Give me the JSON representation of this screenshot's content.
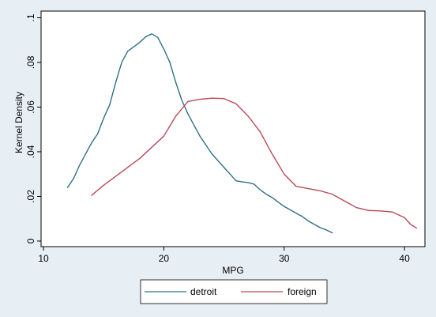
{
  "chart_data": {
    "type": "line",
    "title": "",
    "xlabel": "MPG",
    "ylabel": "Kernel Density",
    "xlim": [
      9.8,
      41.7
    ],
    "ylim": [
      -0.0025,
      0.103
    ],
    "x_ticks": [
      10,
      20,
      30,
      40
    ],
    "x_tick_labels": [
      "10",
      "20",
      "30",
      "40"
    ],
    "y_ticks": [
      0,
      0.02,
      0.04,
      0.06,
      0.08,
      0.1
    ],
    "y_tick_labels": [
      "0",
      ".02",
      ".04",
      ".06",
      ".08",
      ".1"
    ],
    "grid": false,
    "legend_position": "bottom",
    "series": [
      {
        "name": "detroit",
        "color": "#2e6f86",
        "x": [
          12,
          12.5,
          13,
          13.5,
          14,
          14.5,
          15,
          15.5,
          16,
          16.5,
          17,
          17.5,
          18,
          18.5,
          19,
          19.5,
          20,
          20.5,
          21,
          21.5,
          22,
          22.5,
          23,
          23.5,
          24,
          24.5,
          25,
          25.5,
          26,
          26.5,
          27,
          27.5,
          28,
          28.5,
          29,
          29.5,
          30,
          30.5,
          31,
          31.5,
          32,
          32.5,
          33,
          33.5,
          34
        ],
        "y": [
          0.024,
          0.028,
          0.034,
          0.039,
          0.044,
          0.048,
          0.055,
          0.061,
          0.071,
          0.08,
          0.085,
          0.087,
          0.089,
          0.0915,
          0.0928,
          0.0912,
          0.086,
          0.08,
          0.071,
          0.063,
          0.057,
          0.052,
          0.047,
          0.043,
          0.039,
          0.036,
          0.033,
          0.03,
          0.027,
          0.0265,
          0.0262,
          0.0255,
          0.023,
          0.021,
          0.0195,
          0.0175,
          0.0155,
          0.014,
          0.0125,
          0.011,
          0.009,
          0.0075,
          0.006,
          0.005,
          0.0037
        ]
      },
      {
        "name": "foreign",
        "color": "#b84a55",
        "x": [
          14,
          15,
          16,
          17,
          18,
          19,
          20,
          21,
          22,
          23,
          24,
          25,
          26,
          27,
          28,
          29,
          30,
          31,
          32,
          33,
          34,
          35,
          36,
          37,
          38,
          39,
          40,
          40.5,
          41
        ],
        "y": [
          0.0205,
          0.025,
          0.029,
          0.033,
          0.037,
          0.042,
          0.047,
          0.056,
          0.0625,
          0.0635,
          0.064,
          0.0638,
          0.0615,
          0.056,
          0.049,
          0.039,
          0.03,
          0.0245,
          0.0235,
          0.0225,
          0.021,
          0.018,
          0.015,
          0.0137,
          0.0135,
          0.013,
          0.0105,
          0.0075,
          0.0058
        ]
      }
    ]
  }
}
